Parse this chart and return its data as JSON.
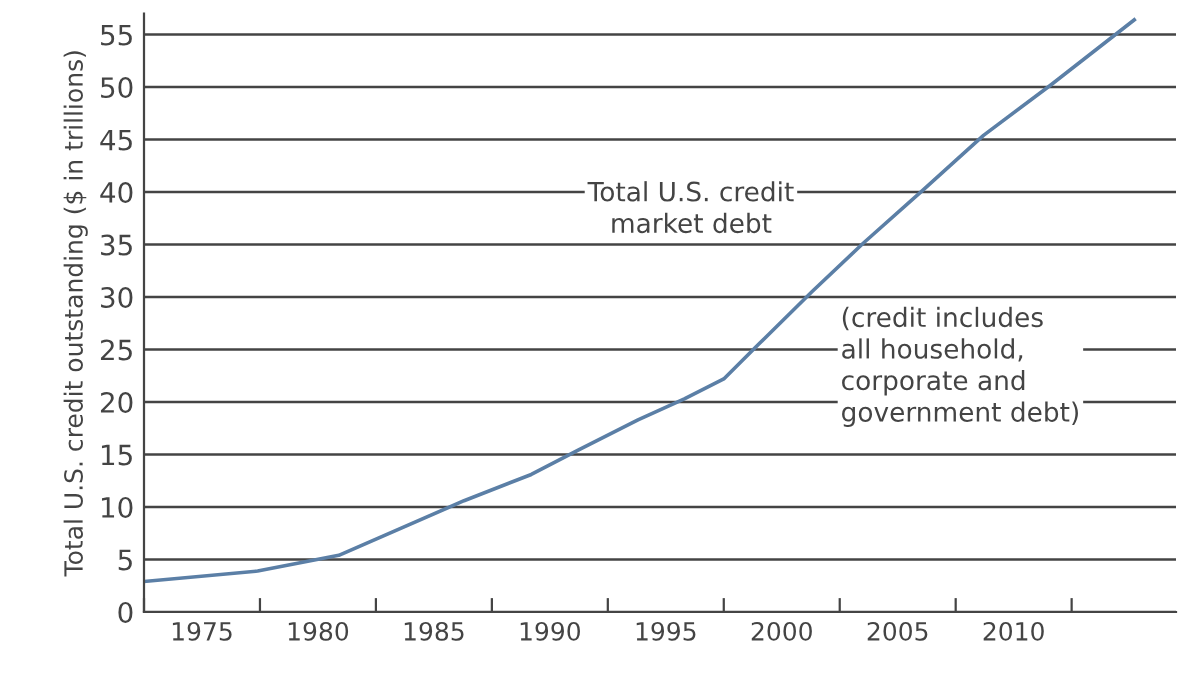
{
  "chart_data": {
    "type": "line",
    "ylabel": "Total U.S. credit outstanding ($ in trillions)",
    "annotations": [
      "Total U.S. credit\nmarket debt",
      "(credit includes\nall household,\ncorporate and\ngovernment debt)"
    ],
    "x": [
      1972.5,
      1977.4,
      1980.9,
      1986.3,
      1989.2,
      1991.2,
      1993.8,
      1995.8,
      1997.5,
      1999.0,
      2001.3,
      2003.5,
      2006.1,
      2008.7,
      2011.6,
      2015.2
    ],
    "series": [
      {
        "color": "#5b7fa6",
        "values": [
          2.9,
          3.9,
          5.4,
          10.6,
          13.1,
          15.4,
          18.3,
          20.3,
          22.2,
          25.5,
          30.5,
          35.1,
          40.2,
          45.4,
          50.2,
          56.4
        ]
      }
    ],
    "xlim": [
      1972.5,
      2017
    ],
    "xticks": [
      {
        "value": 1972.5,
        "label": null
      },
      {
        "value": 1975,
        "label": "1975"
      },
      {
        "value": 1977.5,
        "label": null
      },
      {
        "value": 1980,
        "label": "1980"
      },
      {
        "value": 1982.5,
        "label": null
      },
      {
        "value": 1985,
        "label": "1985"
      },
      {
        "value": 1987.5,
        "label": null
      },
      {
        "value": 1990,
        "label": "1990"
      },
      {
        "value": 1992.5,
        "label": null
      },
      {
        "value": 1995,
        "label": "1995"
      },
      {
        "value": 1997.5,
        "label": null
      },
      {
        "value": 2000,
        "label": "2000"
      },
      {
        "value": 2002.5,
        "label": null
      },
      {
        "value": 2005,
        "label": "2005"
      },
      {
        "value": 2007.5,
        "label": null
      },
      {
        "value": 2010,
        "label": "2010"
      },
      {
        "value": 2012.5,
        "label": null
      }
    ],
    "ylim": [
      0,
      57
    ],
    "yticks": [
      0,
      5,
      10,
      15,
      20,
      25,
      30,
      35,
      40,
      45,
      50,
      55
    ],
    "grid": "y",
    "legend": false,
    "marker": "none",
    "line_style": "solid"
  }
}
